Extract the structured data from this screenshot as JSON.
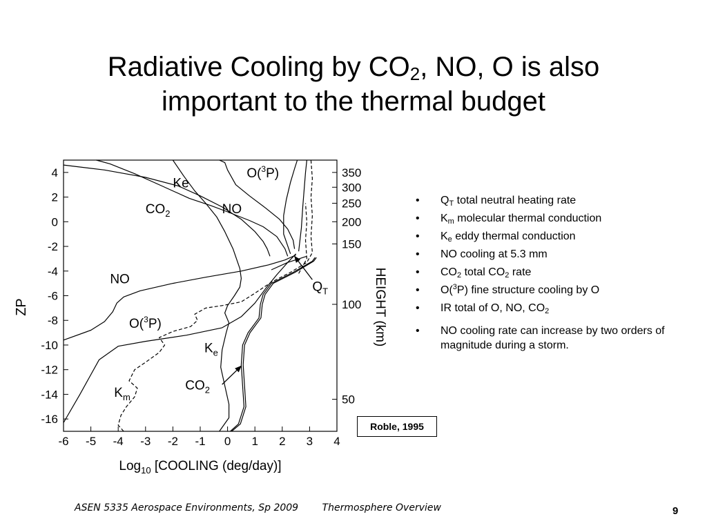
{
  "title": {
    "line1_a": "Radiative Cooling by CO",
    "line1_sub": "2",
    "line1_b": ", NO, O is also",
    "line2": "important to the thermal budget"
  },
  "chart_data": {
    "type": "line",
    "xlabel_a": "Log",
    "xlabel_sub": "10",
    "xlabel_b": " [COOLING (deg/day)]",
    "ylabel_left": "ZP",
    "ylabel_right": "HEIGHT (km)",
    "xlim": [
      -6,
      4
    ],
    "ylim": [
      -17,
      5
    ],
    "x_ticks": [
      "-6",
      "-5",
      "-4",
      "-3",
      "-2",
      "-1",
      "0",
      "1",
      "2",
      "3",
      "4"
    ],
    "y_ticks_left": [
      "4",
      "2",
      "0",
      "-2",
      "-4",
      "-6",
      "-8",
      "-10",
      "-12",
      "-14",
      "-16"
    ],
    "y_ticks_right": [
      {
        "label": "350",
        "zp": 4.0
      },
      {
        "label": "300",
        "zp": 2.8
      },
      {
        "label": "250",
        "zp": 1.5
      },
      {
        "label": "200",
        "zp": 0
      },
      {
        "label": "150",
        "zp": -1.8
      },
      {
        "label": "100",
        "zp": -6.7
      },
      {
        "label": "50",
        "zp": -14.4
      }
    ],
    "series": [
      {
        "key": "no_upper",
        "points": [
          [
            -6,
            4.6
          ],
          [
            -4.5,
            4.2
          ],
          [
            -3,
            3.6
          ],
          [
            -1.8,
            2.9
          ],
          [
            -1,
            2.1
          ],
          [
            -0.2,
            1.2
          ],
          [
            0.5,
            0.2
          ],
          [
            1,
            -0.8
          ],
          [
            1.3,
            -1.6
          ],
          [
            1.45,
            -2.2
          ],
          [
            1.55,
            -2.8
          ]
        ]
      },
      {
        "key": "no_lower",
        "points": [
          [
            -6,
            -9.6
          ],
          [
            -5,
            -8.8
          ],
          [
            -4.5,
            -8.1
          ],
          [
            -4.2,
            -7.3
          ],
          [
            -4.05,
            -6.6
          ],
          [
            -3.8,
            -6.1
          ],
          [
            -3.2,
            -5.6
          ],
          [
            -2,
            -5.0
          ],
          [
            -0.8,
            -4.5
          ],
          [
            0.5,
            -4.0
          ],
          [
            1.5,
            -3.5
          ],
          [
            2.1,
            -3.1
          ],
          [
            2.5,
            -2.7
          ]
        ]
      },
      {
        "key": "o3p_upper",
        "points": [
          [
            -0.3,
            5
          ],
          [
            -0.1,
            4.8
          ],
          [
            0,
            4.2
          ],
          [
            0.3,
            3.0
          ],
          [
            0.8,
            2.1
          ],
          [
            1.4,
            1.1
          ],
          [
            1.9,
            0.2
          ],
          [
            2.2,
            -0.6
          ],
          [
            2.4,
            -1.5
          ],
          [
            2.45,
            -2.2
          ]
        ]
      },
      {
        "key": "o3p_lower",
        "points": [
          [
            -6,
            -16.3
          ],
          [
            -5.4,
            -14
          ],
          [
            -4.7,
            -11.2
          ],
          [
            -4,
            -10.1
          ],
          [
            -3,
            -9.7
          ],
          [
            -1.5,
            -9.2
          ],
          [
            -0.2,
            -8.6
          ],
          [
            0.5,
            -7.7
          ],
          [
            1,
            -6.6
          ],
          [
            1.4,
            -5.4
          ],
          [
            1.8,
            -4.3
          ],
          [
            2.2,
            -3.3
          ],
          [
            2.5,
            -2.6
          ]
        ]
      },
      {
        "key": "co2",
        "points": [
          [
            -4.8,
            5
          ],
          [
            -4.3,
            4.7
          ],
          [
            -3.4,
            3.9
          ],
          [
            -2.4,
            2.9
          ],
          [
            -1.4,
            1.9
          ],
          [
            -0.6,
            1.3
          ],
          [
            0,
            0.8
          ],
          [
            0.8,
            0.1
          ],
          [
            1.3,
            -0.4
          ],
          [
            1.8,
            -1.2
          ],
          [
            2.1,
            -2.2
          ],
          [
            2.2,
            -2.8
          ]
        ]
      },
      {
        "key": "ke_curve",
        "points": [
          [
            -2,
            5
          ],
          [
            -1.6,
            3.7
          ],
          [
            -1.2,
            2.5
          ],
          [
            -0.8,
            1.5
          ],
          [
            -0.4,
            0.4
          ],
          [
            -0.1,
            -0.8
          ],
          [
            0.2,
            -2.2
          ],
          [
            0.45,
            -3.8
          ],
          [
            0.5,
            -4.6
          ],
          [
            0.45,
            -5.3
          ],
          [
            0.25,
            -6.0
          ],
          [
            0,
            -6.8
          ],
          [
            -0.1,
            -7.4
          ],
          [
            0.05,
            -8.2
          ],
          [
            -0.05,
            -9.0
          ],
          [
            -0.2,
            -10.4
          ],
          [
            -0.25,
            -11.8
          ],
          [
            -0.1,
            -13.3
          ],
          [
            0.05,
            -14.8
          ],
          [
            0.05,
            -15.9
          ],
          [
            -0.3,
            -17
          ]
        ]
      },
      {
        "key": "co2_lower_a",
        "points": [
          [
            0.1,
            -17
          ],
          [
            0.4,
            -16.4
          ],
          [
            0.6,
            -15
          ],
          [
            0.55,
            -13.3
          ],
          [
            0.5,
            -11.6
          ],
          [
            0.55,
            -10
          ],
          [
            0.75,
            -9
          ],
          [
            1.15,
            -7.8
          ],
          [
            1.2,
            -6.7
          ],
          [
            1.3,
            -5.9
          ],
          [
            1.6,
            -5.0
          ],
          [
            2.4,
            -4.1
          ],
          [
            3.1,
            -3.2
          ],
          [
            3.2,
            -2.9
          ]
        ]
      },
      {
        "key": "co2_lower_b",
        "points": [
          [
            0.15,
            -17
          ],
          [
            0.47,
            -16.4
          ],
          [
            0.67,
            -15
          ],
          [
            0.62,
            -13.3
          ],
          [
            0.57,
            -11.6
          ],
          [
            0.62,
            -10
          ],
          [
            0.82,
            -9
          ],
          [
            1.22,
            -7.8
          ],
          [
            1.27,
            -6.7
          ],
          [
            1.37,
            -5.9
          ],
          [
            1.67,
            -5.0
          ],
          [
            2.47,
            -4.1
          ],
          [
            3.15,
            -3.2
          ],
          [
            3.25,
            -2.9
          ]
        ]
      },
      {
        "key": "qt",
        "points": [
          [
            2.3,
            -2.6
          ],
          [
            2.05,
            -1
          ],
          [
            2.05,
            0.5
          ],
          [
            2.15,
            1.8
          ],
          [
            2.3,
            3.2
          ],
          [
            2.45,
            4.3
          ],
          [
            2.55,
            5
          ]
        ]
      },
      {
        "key": "right_solid_upper",
        "points": [
          [
            2.6,
            -2.4
          ],
          [
            2.7,
            -0.5
          ],
          [
            2.75,
            1.2
          ],
          [
            2.8,
            2.6
          ],
          [
            2.85,
            4
          ],
          [
            2.9,
            5
          ]
        ]
      },
      {
        "key": "right_solid_mid",
        "points": [
          [
            1.6,
            -3.9
          ],
          [
            2.2,
            -3.3
          ],
          [
            2.9,
            -2.8
          ]
        ]
      },
      {
        "key": "km_dashed",
        "dashed": true,
        "points": [
          [
            -3.8,
            -17
          ],
          [
            -4.0,
            -16.5
          ],
          [
            -3.9,
            -15.7
          ],
          [
            -3.7,
            -15.0
          ],
          [
            -3.4,
            -14.2
          ],
          [
            -3.3,
            -13.5
          ],
          [
            -3.6,
            -12.9
          ],
          [
            -3.4,
            -12.0
          ],
          [
            -3.0,
            -11.4
          ],
          [
            -2.5,
            -10.6
          ],
          [
            -2.3,
            -10.0
          ],
          [
            -2.5,
            -9.4
          ],
          [
            -2.0,
            -8.9
          ],
          [
            -1.35,
            -8.5
          ],
          [
            -1.1,
            -8.0
          ],
          [
            -1.2,
            -7.5
          ],
          [
            -0.8,
            -7.0
          ],
          [
            -0.2,
            -6.8
          ],
          [
            0.5,
            -6.5
          ],
          [
            1.0,
            -5.8
          ],
          [
            1.6,
            -4.9
          ],
          [
            2.3,
            -4.1
          ],
          [
            2.9,
            -3.3
          ],
          [
            3.1,
            -2.5
          ],
          [
            3.05,
            -1.2
          ],
          [
            3.1,
            0.5
          ],
          [
            3.05,
            2.0
          ],
          [
            3.1,
            3.5
          ],
          [
            3.05,
            5
          ]
        ]
      },
      {
        "key": "right_dashed",
        "dashed": true,
        "points": [
          [
            2.6,
            -4.2
          ],
          [
            2.9,
            -3.0
          ],
          [
            2.85,
            -1.5
          ],
          [
            2.9,
            0
          ],
          [
            2.85,
            1.5
          ]
        ]
      }
    ],
    "annotations": [
      {
        "key": "lbl_o3p_upper",
        "text": "O(",
        "sup": "3",
        "tail": "P)",
        "x": 0.7,
        "y": 3.6
      },
      {
        "key": "lbl_ke_upper",
        "text": "Ke",
        "x": -2.0,
        "y": 2.8
      },
      {
        "key": "lbl_co2_upper",
        "text": "CO",
        "sub": "2",
        "x": -3.0,
        "y": 0.7
      },
      {
        "key": "lbl_no_upper",
        "text": "NO",
        "x": -0.2,
        "y": 0.7
      },
      {
        "key": "lbl_no_lower",
        "text": "NO",
        "x": -4.3,
        "y": -5.0
      },
      {
        "key": "lbl_o3p_lower",
        "text": "O(",
        "sup": "3",
        "tail": "P)",
        "x": -3.6,
        "y": -8.6
      },
      {
        "key": "lbl_ke_lower",
        "text": "K",
        "sub": "e",
        "x": -0.85,
        "y": -10.6
      },
      {
        "key": "lbl_co2_lower",
        "text": "CO",
        "sub": "2",
        "x": -1.55,
        "y": -13.6
      },
      {
        "key": "lbl_km",
        "text": "K",
        "sub": "m",
        "x": -4.15,
        "y": -14.2
      },
      {
        "key": "lbl_qt",
        "text": "Q",
        "sub": "T",
        "x": 3.1,
        "y": -5.6
      }
    ],
    "arrows": [
      {
        "key": "arrow_co2",
        "from": [
          -0.2,
          -13.2
        ],
        "to": [
          0.5,
          -11.7
        ]
      },
      {
        "key": "arrow_qt",
        "from": [
          3.1,
          -4.7
        ],
        "to": [
          2.45,
          -2.8
        ]
      }
    ]
  },
  "bullets": [
    {
      "main": "Q",
      "sub": "T",
      "rest": " total neutral heating rate"
    },
    {
      "main": "K",
      "sub": "m",
      "rest": " molecular thermal conduction"
    },
    {
      "main": "K",
      "sub": "e",
      "rest": " eddy thermal conduction"
    },
    {
      "main": "NO cooling at 5.3 mm"
    },
    {
      "main": "CO",
      "sub": "2",
      "rest": " total CO",
      "sub2": "2",
      "rest2": " rate"
    },
    {
      "main": "O(",
      "sup": "3",
      "rest": "P) fine structure cooling by O"
    },
    {
      "main": "IR total of O, NO, CO",
      "sub": "2"
    },
    {
      "main": "NO cooling rate can increase by two orders of magnitude during a storm."
    }
  ],
  "citation": "Roble, 1995",
  "footer": {
    "course": "ASEN 5335 Aerospace Environments, Sp 2009",
    "topic": "Thermosphere Overview"
  },
  "page_number": "9"
}
